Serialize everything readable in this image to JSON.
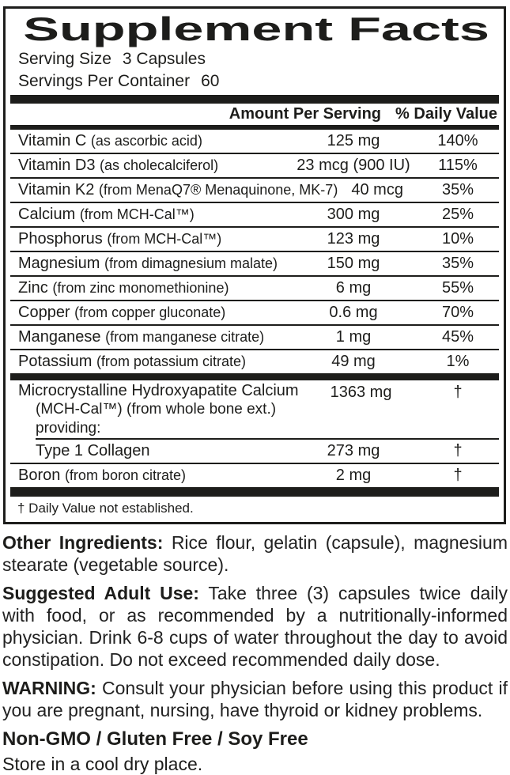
{
  "panel": {
    "title": "Supplement Facts",
    "serving_size_label": "Serving Size",
    "serving_size_value": "3 Capsules",
    "servings_per_container_label": "Servings Per Container",
    "servings_per_container_value": "60",
    "columns": {
      "amount": "Amount Per Serving",
      "daily_value": "% Daily Value"
    },
    "rows": [
      {
        "name": "Vitamin C",
        "detail": "(as ascorbic acid)",
        "amount": "125 mg",
        "dv": "140%"
      },
      {
        "name": "Vitamin D3",
        "detail": "(as cholecalciferol)",
        "amount": "23 mcg (900 IU)",
        "dv": "115%"
      },
      {
        "name": "Vitamin K2",
        "detail": "(from MenaQ7® Menaquinone, MK-7)",
        "amount": "40 mcg",
        "dv": "35%"
      },
      {
        "name": "Calcium",
        "detail": "(from MCH-Cal™)",
        "amount": "300 mg",
        "dv": "25%"
      },
      {
        "name": "Phosphorus",
        "detail": "(from MCH-Cal™)",
        "amount": "123 mg",
        "dv": "10%"
      },
      {
        "name": "Magnesium",
        "detail": "(from dimagnesium malate)",
        "amount": "150 mg",
        "dv": "35%"
      },
      {
        "name": "Zinc",
        "detail": "(from zinc monomethionine)",
        "amount": "6 mg",
        "dv": "55%"
      },
      {
        "name": "Copper",
        "detail": "(from copper gluconate)",
        "amount": "0.6 mg",
        "dv": "70%"
      },
      {
        "name": "Manganese",
        "detail": "(from manganese citrate)",
        "amount": "1 mg",
        "dv": "45%"
      },
      {
        "name": "Potassium",
        "detail": "(from potassium citrate)",
        "amount": "49 mg",
        "dv": "1%"
      }
    ],
    "mch_row": {
      "name_line1": "Microcrystalline Hydroxyapatite Calcium",
      "name_line2": "(MCH-Cal™) (from whole bone ext.) providing:",
      "amount": "1363 mg",
      "dv": "†"
    },
    "collagen_row": {
      "name": "Type 1 Collagen",
      "amount": "273 mg",
      "dv": "†"
    },
    "boron_row": {
      "name": "Boron",
      "detail": "(from boron citrate)",
      "amount": "2 mg",
      "dv": "†"
    },
    "footnote": "† Daily Value not established."
  },
  "info": {
    "other_ingredients_label": "Other Ingredients:",
    "other_ingredients_text": "Rice flour, gelatin (capsule), magnesium stearate (vegetable source).",
    "suggested_use_label": "Suggested Adult Use:",
    "suggested_use_text": "Take three (3) capsules twice daily with food, or as recommended by a nutritionally-informed physician. Drink 6-8 cups of water throughout the day to avoid constipation. Do not exceed recommended daily dose.",
    "warning_label": "WARNING:",
    "warning_text": "Consult your physician before using this product if you are pregnant, nursing, have thyroid or kidney problems.",
    "claims": "Non-GMO / Gluten Free / Soy Free",
    "storage": "Store in a cool dry place."
  },
  "colors": {
    "text": "#1d1d1b",
    "background": "#ffffff"
  }
}
